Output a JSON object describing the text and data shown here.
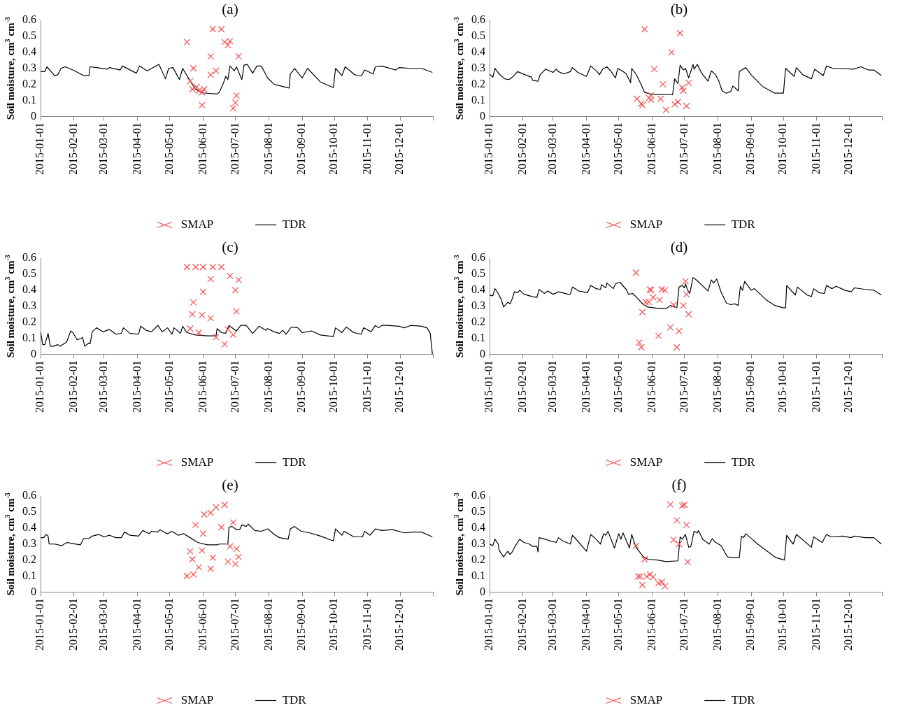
{
  "chart_data": [
    {
      "type": "line",
      "title": "(a)",
      "ylabel": "Soil moisture, cm$^{3}$ cm$^{-3}$",
      "xlim": [
        "2015-01-01",
        "2016-01-01"
      ],
      "xticks": [
        "2015-01-01",
        "2015-02-01",
        "2015-03-01",
        "2015-04-01",
        "2015-05-01",
        "2015-06-01",
        "2015-07-01",
        "2015-08-01",
        "2015-09-01",
        "2015-10-01",
        "2015-11-01",
        "2015-12-01",
        {
          "value": "2016-01-01",
          "label": null
        }
      ],
      "ylim": [
        0,
        0.6
      ],
      "yticks": [
        0,
        0.1,
        0.2,
        0.3,
        0.4,
        0.5,
        0.6
      ],
      "legend": "bottom",
      "series": [
        {
          "name": "SMAP",
          "type": "scatter",
          "marker": "cross",
          "color": "#ff4d4d",
          "x": [
            "2015-05-17",
            "2015-05-20",
            "2015-05-22",
            "2015-05-23",
            "2015-05-26",
            "2015-05-28",
            "2015-05-31",
            "2015-05-31",
            "2015-06-02",
            "2015-06-08",
            "2015-06-08",
            "2015-06-10",
            "2015-06-13",
            "2015-06-18",
            "2015-06-21",
            "2015-06-24",
            "2015-06-26",
            "2015-06-29",
            "2015-07-01",
            "2015-07-02",
            "2015-07-04"
          ],
          "values": [
            0.465,
            0.22,
            0.17,
            0.3,
            0.185,
            0.16,
            0.07,
            0.15,
            0.17,
            0.26,
            0.375,
            0.545,
            0.285,
            0.545,
            0.465,
            0.445,
            0.47,
            0.05,
            0.085,
            0.13,
            0.375
          ]
        },
        {
          "name": "TDR",
          "color": "#000000",
          "x": [
            "2015-01-01",
            "2015-01-05",
            "2015-01-07",
            "2015-01-14",
            "2015-01-17",
            "2015-01-20",
            "2015-01-24",
            "2015-01-31",
            "2015-02-10",
            "2015-02-15",
            "2015-02-16",
            "2015-02-22",
            "2015-03-04",
            "2015-03-06",
            "2015-03-16",
            "2015-03-18",
            "2015-03-31",
            "2015-04-03",
            "2015-04-10",
            "2015-04-21",
            "2015-04-27",
            "2015-04-30",
            "2015-05-04",
            "2015-05-10",
            "2015-05-13",
            "2015-05-21",
            "2015-05-25",
            "2015-05-31",
            "2015-06-14",
            "2015-06-16",
            "2015-06-20",
            "2015-06-22",
            "2015-06-24",
            "2015-06-26",
            "2015-06-30",
            "2015-07-02",
            "2015-07-07",
            "2015-07-09",
            "2015-07-12",
            "2015-07-17",
            "2015-07-21",
            "2015-07-25",
            "2015-07-31",
            "2015-08-06",
            "2015-08-20",
            "2015-08-21",
            "2015-08-25",
            "2015-09-01",
            "2015-09-06",
            "2015-09-18",
            "2015-09-30",
            "2015-10-02",
            "2015-10-08",
            "2015-10-11",
            "2015-10-20",
            "2015-10-26",
            "2015-10-29",
            "2015-11-06",
            "2015-11-08",
            "2015-11-14",
            "2015-11-27",
            "2015-11-30",
            "2015-12-11",
            "2015-12-21",
            "2015-12-31"
          ],
          "values": [
            0.28,
            0.28,
            0.31,
            0.255,
            0.26,
            0.3,
            0.31,
            0.29,
            0.255,
            0.255,
            0.31,
            0.305,
            0.295,
            0.305,
            0.29,
            0.315,
            0.27,
            0.315,
            0.285,
            0.325,
            0.235,
            0.3,
            0.305,
            0.23,
            0.3,
            0.21,
            0.17,
            0.147,
            0.14,
            0.15,
            0.21,
            0.25,
            0.23,
            0.315,
            0.285,
            0.31,
            0.23,
            0.32,
            0.325,
            0.27,
            0.315,
            0.315,
            0.24,
            0.2,
            0.177,
            0.265,
            0.3,
            0.24,
            0.3,
            0.215,
            0.18,
            0.3,
            0.255,
            0.31,
            0.26,
            0.253,
            0.29,
            0.265,
            0.31,
            0.315,
            0.29,
            0.305,
            0.3,
            0.3,
            0.275
          ]
        }
      ]
    },
    {
      "type": "line",
      "title": "(b)",
      "ylabel": "Soil moisture, cm$^{3}$ cm$^{-3}$",
      "xlim": [
        "2015-01-01",
        "2016-01-01"
      ],
      "xticks": [
        "2015-01-01",
        "2015-02-01",
        "2015-03-01",
        "2015-04-01",
        "2015-05-01",
        "2015-06-01",
        "2015-07-01",
        "2015-08-01",
        "2015-09-01",
        "2015-10-01",
        "2015-11-01",
        "2015-12-01",
        {
          "value": "2016-01-01",
          "label": null
        }
      ],
      "ylim": [
        0,
        0.6
      ],
      "yticks": [
        0,
        0.1,
        0.2,
        0.3,
        0.4,
        0.5,
        0.6
      ],
      "legend": "bottom",
      "series": [
        {
          "name": "SMAP",
          "type": "scatter",
          "marker": "cross",
          "color": "#ff4d4d",
          "x": [
            "2015-05-18",
            "2015-05-22",
            "2015-05-23",
            "2015-05-25",
            "2015-05-29",
            "2015-05-31",
            "2015-05-31",
            "2015-06-03",
            "2015-06-09",
            "2015-06-11",
            "2015-06-14",
            "2015-06-19",
            "2015-06-22",
            "2015-06-25",
            "2015-06-27",
            "2015-06-29",
            "2015-06-30",
            "2015-07-03",
            "2015-07-05"
          ],
          "values": [
            0.11,
            0.08,
            0.07,
            0.545,
            0.115,
            0.13,
            0.105,
            0.295,
            0.11,
            0.2,
            0.04,
            0.4,
            0.075,
            0.09,
            0.52,
            0.18,
            0.16,
            0.065,
            0.21
          ]
        },
        {
          "name": "TDR",
          "color": "#000000",
          "x": [
            "2015-01-01",
            "2015-01-04",
            "2015-01-06",
            "2015-01-10",
            "2015-01-15",
            "2015-01-19",
            "2015-01-23",
            "2015-01-27",
            "2015-02-03",
            "2015-02-09",
            "2015-02-10",
            "2015-02-15",
            "2015-02-17",
            "2015-02-22",
            "2015-03-01",
            "2015-03-04",
            "2015-03-06",
            "2015-03-11",
            "2015-03-17",
            "2015-03-19",
            "2015-03-24",
            "2015-04-01",
            "2015-04-05",
            "2015-04-11",
            "2015-04-13",
            "2015-04-16",
            "2015-04-20",
            "2015-04-24",
            "2015-04-28",
            "2015-04-30",
            "2015-05-05",
            "2015-05-08",
            "2015-05-12",
            "2015-05-13",
            "2015-05-17",
            "2015-05-21",
            "2015-05-25",
            "2015-06-01",
            "2015-06-20",
            "2015-06-22",
            "2015-06-25",
            "2015-06-27",
            "2015-06-30",
            "2015-07-02",
            "2015-07-05",
            "2015-07-09",
            "2015-07-10",
            "2015-07-13",
            "2015-07-17",
            "2015-07-23",
            "2015-07-26",
            "2015-07-30",
            "2015-08-02",
            "2015-08-05",
            "2015-08-09",
            "2015-08-13",
            "2015-08-15",
            "2015-08-20",
            "2015-08-21",
            "2015-08-27",
            "2015-09-01",
            "2015-09-12",
            "2015-09-23",
            "2015-10-01",
            "2015-10-03",
            "2015-10-11",
            "2015-10-13",
            "2015-10-19",
            "2015-10-27",
            "2015-10-30",
            "2015-11-07",
            "2015-11-10",
            "2015-11-16",
            "2015-11-22",
            "2015-12-05",
            "2015-12-12",
            "2015-12-19",
            "2015-12-24",
            "2015-12-31"
          ],
          "values": [
            0.264,
            0.245,
            0.3,
            0.265,
            0.235,
            0.23,
            0.25,
            0.28,
            0.26,
            0.245,
            0.225,
            0.22,
            0.26,
            0.295,
            0.275,
            0.295,
            0.28,
            0.265,
            0.28,
            0.305,
            0.275,
            0.25,
            0.315,
            0.28,
            0.26,
            0.295,
            0.31,
            0.28,
            0.24,
            0.3,
            0.28,
            0.265,
            0.21,
            0.3,
            0.265,
            0.21,
            0.15,
            0.138,
            0.135,
            0.235,
            0.205,
            0.32,
            0.29,
            0.3,
            0.24,
            0.325,
            0.295,
            0.325,
            0.27,
            0.22,
            0.285,
            0.26,
            0.22,
            0.16,
            0.145,
            0.155,
            0.19,
            0.16,
            0.28,
            0.305,
            0.26,
            0.185,
            0.145,
            0.145,
            0.3,
            0.25,
            0.305,
            0.26,
            0.235,
            0.295,
            0.255,
            0.315,
            0.3,
            0.3,
            0.295,
            0.31,
            0.29,
            0.29,
            0.255
          ]
        }
      ]
    },
    {
      "type": "line",
      "title": "(c)",
      "ylabel": "Soil moisture, cm$^{3}$ cm$^{-3}$",
      "xlim": [
        "2015-01-01",
        "2016-01-01"
      ],
      "xticks": [
        "2015-01-01",
        "2015-02-01",
        "2015-03-01",
        "2015-04-01",
        "2015-05-01",
        "2015-06-01",
        "2015-07-01",
        "2015-08-01",
        "2015-09-01",
        "2015-10-01",
        "2015-11-01",
        "2015-12-01",
        {
          "value": "2016-01-01",
          "label": null
        }
      ],
      "ylim": [
        0,
        0.6
      ],
      "yticks": [
        0,
        0.1,
        0.2,
        0.3,
        0.4,
        0.5,
        0.6
      ],
      "legend": "bottom",
      "series": [
        {
          "name": "SMAP",
          "type": "scatter",
          "marker": "cross",
          "color": "#ff4d4d",
          "x": [
            "2015-05-17",
            "2015-05-20",
            "2015-05-22",
            "2015-05-23",
            "2015-05-25",
            "2015-05-28",
            "2015-05-31",
            "2015-06-01",
            "2015-06-01",
            "2015-06-08",
            "2015-06-08",
            "2015-06-10",
            "2015-06-13",
            "2015-06-18",
            "2015-06-21",
            "2015-06-24",
            "2015-06-26",
            "2015-06-29",
            "2015-07-01",
            "2015-07-02",
            "2015-07-04"
          ],
          "values": [
            0.545,
            0.16,
            0.25,
            0.325,
            0.545,
            0.135,
            0.245,
            0.545,
            0.39,
            0.47,
            0.225,
            0.545,
            0.107,
            0.545,
            0.062,
            0.155,
            0.49,
            0.122,
            0.4,
            0.268,
            0.465
          ]
        },
        {
          "name": "TDR",
          "color": "#000000",
          "x": [
            "2015-01-01",
            "2015-01-03",
            "2015-01-05",
            "2015-01-08",
            "2015-01-10",
            "2015-01-13",
            "2015-01-17",
            "2015-01-19",
            "2015-01-25",
            "2015-01-26",
            "2015-01-29",
            "2015-01-31",
            "2015-02-04",
            "2015-02-08",
            "2015-02-09",
            "2015-02-11",
            "2015-02-15",
            "2015-02-16",
            "2015-02-18",
            "2015-02-22",
            "2015-02-28",
            "2015-03-06",
            "2015-03-12",
            "2015-03-17",
            "2015-03-19",
            "2015-03-25",
            "2015-04-02",
            "2015-04-04",
            "2015-04-09",
            "2015-04-14",
            "2015-04-20",
            "2015-04-24",
            "2015-04-29",
            "2015-05-03",
            "2015-05-05",
            "2015-05-11",
            "2015-05-13",
            "2015-05-17",
            "2015-05-25",
            "2015-06-05",
            "2015-06-13",
            "2015-06-14",
            "2015-06-18",
            "2015-06-22",
            "2015-06-25",
            "2015-07-02",
            "2015-07-06",
            "2015-07-11",
            "2015-07-17",
            "2015-07-23",
            "2015-07-29",
            "2015-07-31",
            "2015-08-06",
            "2015-08-11",
            "2015-08-14",
            "2015-08-17",
            "2015-08-22",
            "2015-08-28",
            "2015-09-01",
            "2015-09-10",
            "2015-09-18",
            "2015-09-30",
            "2015-10-02",
            "2015-10-08",
            "2015-10-12",
            "2015-10-19",
            "2015-10-26",
            "2015-10-28",
            "2015-11-04",
            "2015-11-08",
            "2015-11-11",
            "2015-11-14",
            "2015-11-19",
            "2015-11-30",
            "2015-12-05",
            "2015-12-11",
            "2015-12-21",
            "2015-12-26",
            "2015-12-29",
            "2015-12-31"
          ],
          "values": [
            0.14,
            0.06,
            0.06,
            0.13,
            0.05,
            0.05,
            0.06,
            0.05,
            0.075,
            0.09,
            0.145,
            0.135,
            0.09,
            0.1,
            0.105,
            0.05,
            0.07,
            0.065,
            0.14,
            0.165,
            0.14,
            0.155,
            0.125,
            0.13,
            0.165,
            0.13,
            0.125,
            0.175,
            0.15,
            0.14,
            0.18,
            0.14,
            0.165,
            0.125,
            0.165,
            0.13,
            0.175,
            0.135,
            0.12,
            0.115,
            0.115,
            0.16,
            0.135,
            0.13,
            0.18,
            0.145,
            0.18,
            0.18,
            0.13,
            0.175,
            0.15,
            0.16,
            0.14,
            0.13,
            0.15,
            0.125,
            0.17,
            0.165,
            0.135,
            0.145,
            0.12,
            0.11,
            0.165,
            0.135,
            0.17,
            0.135,
            0.125,
            0.165,
            0.14,
            0.18,
            0.165,
            0.18,
            0.18,
            0.175,
            0.165,
            0.18,
            0.175,
            0.165,
            0.13,
            0
          ]
        }
      ]
    },
    {
      "type": "line",
      "title": "(d)",
      "ylabel": "Soil moisture, cm$^{3}$ cm$^{-3}$",
      "xlim": [
        "2015-01-01",
        "2016-01-01"
      ],
      "xticks": [
        "2015-01-01",
        "2015-02-01",
        "2015-03-01",
        "2015-04-01",
        "2015-05-01",
        "2015-06-01",
        "2015-07-01",
        "2015-08-01",
        "2015-09-01",
        "2015-10-01",
        "2015-11-01",
        "2015-12-01",
        {
          "value": "2016-01-01",
          "label": null
        }
      ],
      "ylim": [
        0,
        0.6
      ],
      "yticks": [
        0,
        0.1,
        0.2,
        0.3,
        0.4,
        0.5,
        0.6
      ],
      "legend": "bottom",
      "series": [
        {
          "name": "SMAP",
          "type": "scatter",
          "marker": "cross",
          "color": "#ff4d4d",
          "x": [
            "2015-05-17",
            "2015-05-20",
            "2015-05-22",
            "2015-05-23",
            "2015-05-26",
            "2015-05-29",
            "2015-05-30",
            "2015-05-31",
            "2015-06-02",
            "2015-06-07",
            "2015-06-08",
            "2015-06-10",
            "2015-06-13",
            "2015-06-18",
            "2015-06-21",
            "2015-06-24",
            "2015-06-26",
            "2015-06-30",
            "2015-07-02",
            "2015-07-03",
            "2015-07-05"
          ],
          "values": [
            0.51,
            0.073,
            0.043,
            0.263,
            0.327,
            0.327,
            0.405,
            0.4,
            0.355,
            0.115,
            0.34,
            0.405,
            0.4,
            0.167,
            0.308,
            0.043,
            0.144,
            0.304,
            0.456,
            0.374,
            0.25
          ]
        },
        {
          "name": "TDR",
          "color": "#000000",
          "x": [
            "2015-01-01",
            "2015-01-04",
            "2015-01-06",
            "2015-01-09",
            "2015-01-12",
            "2015-01-14",
            "2015-01-18",
            "2015-01-20",
            "2015-01-22",
            "2015-01-24",
            "2015-01-27",
            "2015-01-29",
            "2015-02-02",
            "2015-02-10",
            "2015-02-14",
            "2015-02-16",
            "2015-02-21",
            "2015-02-24",
            "2015-03-01",
            "2015-03-06",
            "2015-03-15",
            "2015-03-17",
            "2015-03-19",
            "2015-03-25",
            "2015-04-02",
            "2015-04-05",
            "2015-04-10",
            "2015-04-14",
            "2015-04-15",
            "2015-04-19",
            "2015-04-20",
            "2015-04-26",
            "2015-04-28",
            "2015-05-02",
            "2015-05-08",
            "2015-05-10",
            "2015-05-14",
            "2015-05-17",
            "2015-05-24",
            "2015-05-28",
            "2015-06-08",
            "2015-06-14",
            "2015-06-18",
            "2015-06-24",
            "2015-06-26",
            "2015-06-29",
            "2015-07-01",
            "2015-07-02",
            "2015-07-04",
            "2015-07-06",
            "2015-07-09",
            "2015-07-12",
            "2015-07-19",
            "2015-07-23",
            "2015-07-26",
            "2015-07-28",
            "2015-07-31",
            "2015-08-04",
            "2015-08-09",
            "2015-08-13",
            "2015-08-17",
            "2015-08-20",
            "2015-08-22",
            "2015-08-24",
            "2015-08-26",
            "2015-09-01",
            "2015-09-04",
            "2015-09-15",
            "2015-09-23",
            "2015-10-01",
            "2015-10-03",
            "2015-10-04",
            "2015-10-12",
            "2015-10-14",
            "2015-10-23",
            "2015-10-27",
            "2015-10-29",
            "2015-11-03",
            "2015-11-08",
            "2015-11-10",
            "2015-11-15",
            "2015-11-19",
            "2015-11-27",
            "2015-12-03",
            "2015-12-06",
            "2015-12-16",
            "2015-12-24",
            "2015-12-31"
          ],
          "values": [
            0.37,
            0.365,
            0.41,
            0.38,
            0.34,
            0.295,
            0.325,
            0.315,
            0.345,
            0.39,
            0.385,
            0.4,
            0.375,
            0.36,
            0.355,
            0.405,
            0.38,
            0.395,
            0.375,
            0.39,
            0.375,
            0.375,
            0.42,
            0.395,
            0.385,
            0.43,
            0.41,
            0.405,
            0.435,
            0.415,
            0.445,
            0.41,
            0.44,
            0.45,
            0.405,
            0.375,
            0.38,
            0.36,
            0.31,
            0.295,
            0.285,
            0.285,
            0.305,
            0.29,
            0.42,
            0.43,
            0.415,
            0.44,
            0.4,
            0.38,
            0.48,
            0.465,
            0.42,
            0.395,
            0.465,
            0.445,
            0.47,
            0.39,
            0.32,
            0.31,
            0.315,
            0.305,
            0.425,
            0.4,
            0.455,
            0.4,
            0.41,
            0.34,
            0.305,
            0.29,
            0.29,
            0.43,
            0.37,
            0.42,
            0.37,
            0.36,
            0.41,
            0.385,
            0.38,
            0.43,
            0.41,
            0.425,
            0.4,
            0.39,
            0.415,
            0.405,
            0.4,
            0.37
          ]
        }
      ]
    },
    {
      "type": "line",
      "title": "(e)",
      "ylabel": "Soil moisture, cm$^{3}$ cm$^{-3}$",
      "xlim": [
        "2015-01-01",
        "2016-01-01"
      ],
      "xticks": [
        "2015-01-01",
        "2015-02-01",
        "2015-03-01",
        "2015-04-01",
        "2015-05-01",
        "2015-06-01",
        "2015-07-01",
        "2015-08-01",
        "2015-09-01",
        "2015-10-01",
        "2015-11-01",
        "2015-12-01",
        {
          "value": "2016-01-01",
          "label": null
        }
      ],
      "ylim": [
        0,
        0.6
      ],
      "yticks": [
        0,
        0.1,
        0.2,
        0.3,
        0.4,
        0.5,
        0.6
      ],
      "legend": "bottom",
      "series": [
        {
          "name": "SMAP",
          "type": "scatter",
          "marker": "cross",
          "color": "#ff4d4d",
          "x": [
            "2015-05-17",
            "2015-05-20",
            "2015-05-22",
            "2015-05-23",
            "2015-05-25",
            "2015-05-28",
            "2015-05-31",
            "2015-06-01",
            "2015-06-02",
            "2015-06-08",
            "2015-06-08",
            "2015-06-10",
            "2015-06-13",
            "2015-06-18",
            "2015-06-21",
            "2015-06-24",
            "2015-06-26",
            "2015-06-29",
            "2015-07-01",
            "2015-07-02",
            "2015-07-04"
          ],
          "values": [
            0.1,
            0.255,
            0.205,
            0.11,
            0.42,
            0.155,
            0.26,
            0.365,
            0.485,
            0.145,
            0.495,
            0.215,
            0.53,
            0.405,
            0.545,
            0.19,
            0.285,
            0.435,
            0.175,
            0.27,
            0.22
          ]
        },
        {
          "name": "TDR",
          "color": "#000000",
          "x": [
            "2015-01-01",
            "2015-01-04",
            "2015-01-06",
            "2015-01-08",
            "2015-01-09",
            "2015-01-14",
            "2015-01-21",
            "2015-01-24",
            "2015-01-26",
            "2015-01-29",
            "2015-02-07",
            "2015-02-10",
            "2015-02-15",
            "2015-02-18",
            "2015-02-24",
            "2015-03-01",
            "2015-03-06",
            "2015-03-12",
            "2015-03-17",
            "2015-03-20",
            "2015-03-25",
            "2015-04-02",
            "2015-04-06",
            "2015-04-12",
            "2015-04-14",
            "2015-04-20",
            "2015-04-22",
            "2015-04-27",
            "2015-04-29",
            "2015-05-03",
            "2015-05-09",
            "2015-05-14",
            "2015-05-20",
            "2015-05-27",
            "2015-06-05",
            "2015-06-14",
            "2015-06-16",
            "2015-06-24",
            "2015-06-25",
            "2015-06-28",
            "2015-07-02",
            "2015-07-05",
            "2015-07-07",
            "2015-07-11",
            "2015-07-13",
            "2015-07-19",
            "2015-07-25",
            "2015-07-31",
            "2015-08-06",
            "2015-08-11",
            "2015-08-19",
            "2015-08-21",
            "2015-08-25",
            "2015-08-31",
            "2015-09-08",
            "2015-09-18",
            "2015-09-30",
            "2015-10-02",
            "2015-10-08",
            "2015-10-10",
            "2015-10-19",
            "2015-10-27",
            "2015-10-29",
            "2015-11-03",
            "2015-11-08",
            "2015-11-14",
            "2015-11-24",
            "2015-12-05",
            "2015-12-13",
            "2015-12-21",
            "2015-12-31"
          ],
          "values": [
            0.34,
            0.34,
            0.36,
            0.35,
            0.3,
            0.3,
            0.29,
            0.305,
            0.31,
            0.305,
            0.295,
            0.335,
            0.335,
            0.35,
            0.36,
            0.345,
            0.355,
            0.34,
            0.34,
            0.375,
            0.355,
            0.35,
            0.385,
            0.365,
            0.38,
            0.375,
            0.39,
            0.37,
            0.365,
            0.38,
            0.355,
            0.365,
            0.34,
            0.31,
            0.295,
            0.295,
            0.3,
            0.3,
            0.405,
            0.41,
            0.39,
            0.39,
            0.42,
            0.41,
            0.425,
            0.385,
            0.38,
            0.395,
            0.36,
            0.34,
            0.33,
            0.395,
            0.41,
            0.38,
            0.37,
            0.35,
            0.32,
            0.395,
            0.355,
            0.38,
            0.345,
            0.345,
            0.38,
            0.355,
            0.395,
            0.385,
            0.39,
            0.37,
            0.375,
            0.375,
            0.345
          ]
        }
      ]
    },
    {
      "type": "line",
      "title": "(f)",
      "ylabel": "Soil moisture, cm$^{3}$ cm$^{-3}$",
      "xlim": [
        "2015-01-01",
        "2016-01-01"
      ],
      "xticks": [
        "2015-01-01",
        "2015-02-01",
        "2015-03-01",
        "2015-04-01",
        "2015-05-01",
        "2015-06-01",
        "2015-07-01",
        "2015-08-01",
        "2015-09-01",
        "2015-10-01",
        "2015-11-01",
        "2015-12-01",
        {
          "value": "2016-01-01",
          "label": null
        }
      ],
      "ylim": [
        0,
        0.6
      ],
      "yticks": [
        0,
        0.1,
        0.2,
        0.3,
        0.4,
        0.5,
        0.6
      ],
      "legend": "bottom",
      "series": [
        {
          "name": "SMAP",
          "type": "scatter",
          "marker": "cross",
          "color": "#ff4d4d",
          "x": [
            "2015-05-17",
            "2015-05-19",
            "2015-05-21",
            "2015-05-23",
            "2015-05-25",
            "2015-05-27",
            "2015-05-30",
            "2015-06-02",
            "2015-06-07",
            "2015-06-10",
            "2015-06-13",
            "2015-06-18",
            "2015-06-21",
            "2015-06-24",
            "2015-06-26",
            "2015-06-29",
            "2015-07-01",
            "2015-07-03",
            "2015-07-04"
          ],
          "values": [
            0.29,
            0.097,
            0.097,
            0.044,
            0.205,
            0.097,
            0.11,
            0.094,
            0.056,
            0.064,
            0.036,
            0.548,
            0.327,
            0.448,
            0.3,
            0.54,
            0.545,
            0.42,
            0.188
          ]
        },
        {
          "name": "TDR",
          "color": "#000000",
          "x": [
            "2015-01-01",
            "2015-01-04",
            "2015-01-06",
            "2015-01-09",
            "2015-01-10",
            "2015-01-14",
            "2015-01-18",
            "2015-01-20",
            "2015-01-22",
            "2015-01-25",
            "2015-01-27",
            "2015-01-29",
            "2015-02-02",
            "2015-02-07",
            "2015-02-10",
            "2015-02-14",
            "2015-02-15",
            "2015-02-16",
            "2015-02-22",
            "2015-02-26",
            "2015-03-04",
            "2015-03-06",
            "2015-03-10",
            "2015-03-17",
            "2015-03-19",
            "2015-03-25",
            "2015-04-01",
            "2015-04-05",
            "2015-04-10",
            "2015-04-14",
            "2015-04-17",
            "2015-04-19",
            "2015-04-21",
            "2015-04-27",
            "2015-05-01",
            "2015-05-03",
            "2015-05-05",
            "2015-05-11",
            "2015-05-13",
            "2015-05-17",
            "2015-05-24",
            "2015-05-28",
            "2015-06-06",
            "2015-06-14",
            "2015-06-25",
            "2015-06-27",
            "2015-06-29",
            "2015-07-02",
            "2015-07-05",
            "2015-07-07",
            "2015-07-10",
            "2015-07-13",
            "2015-07-14",
            "2015-07-18",
            "2015-07-24",
            "2015-07-27",
            "2015-07-29",
            "2015-08-04",
            "2015-08-10",
            "2015-08-14",
            "2015-08-21",
            "2015-08-23",
            "2015-08-25",
            "2015-08-27",
            "2015-09-02",
            "2015-09-07",
            "2015-09-15",
            "2015-09-24",
            "2015-10-02",
            "2015-10-04",
            "2015-10-10",
            "2015-10-13",
            "2015-10-27",
            "2015-10-29",
            "2015-11-06",
            "2015-11-10",
            "2015-11-14",
            "2015-11-25",
            "2015-12-03",
            "2015-12-06",
            "2015-12-16",
            "2015-12-24",
            "2015-12-31"
          ],
          "values": [
            0.3,
            0.29,
            0.33,
            0.3,
            0.26,
            0.22,
            0.255,
            0.235,
            0.25,
            0.29,
            0.31,
            0.33,
            0.31,
            0.3,
            0.285,
            0.285,
            0.25,
            0.34,
            0.33,
            0.32,
            0.31,
            0.34,
            0.32,
            0.3,
            0.355,
            0.31,
            0.255,
            0.36,
            0.33,
            0.3,
            0.365,
            0.355,
            0.38,
            0.275,
            0.365,
            0.33,
            0.37,
            0.275,
            0.36,
            0.28,
            0.22,
            0.205,
            0.2,
            0.19,
            0.195,
            0.345,
            0.33,
            0.36,
            0.28,
            0.285,
            0.38,
            0.37,
            0.385,
            0.33,
            0.3,
            0.335,
            0.315,
            0.29,
            0.22,
            0.215,
            0.215,
            0.35,
            0.34,
            0.365,
            0.33,
            0.3,
            0.26,
            0.215,
            0.2,
            0.355,
            0.3,
            0.36,
            0.28,
            0.345,
            0.31,
            0.36,
            0.345,
            0.35,
            0.34,
            0.35,
            0.34,
            0.34,
            0.3
          ]
        }
      ]
    }
  ]
}
